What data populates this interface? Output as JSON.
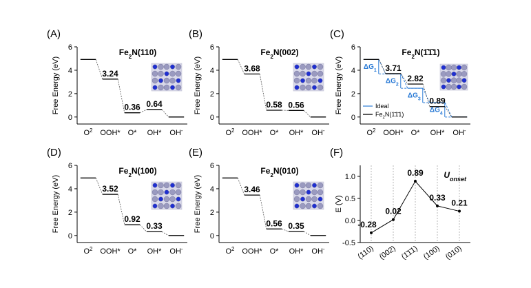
{
  "chart_data": [
    {
      "type": "energy-diagram",
      "panel_label": "(A)",
      "title_main": "Fe",
      "title_sub": "2",
      "title_rest": "N(110)",
      "ylabel": "Free Energy (eV)",
      "ylim": [
        -0.6,
        6
      ],
      "yticks": [
        "0",
        "2",
        "4",
        "6"
      ],
      "categories": [
        "O2",
        "OOH*",
        "O*",
        "OH*",
        "OH-"
      ],
      "values": [
        4.92,
        3.24,
        0.36,
        0.64,
        0
      ],
      "labels": [
        "",
        "3.24",
        "0.36",
        "0.64",
        ""
      ]
    },
    {
      "type": "energy-diagram",
      "panel_label": "(B)",
      "title_main": "Fe",
      "title_sub": "2",
      "title_rest": "N(002)",
      "ylabel": "Free Energy (eV)",
      "ylim": [
        -0.6,
        6
      ],
      "yticks": [
        "0",
        "2",
        "4",
        "6"
      ],
      "categories": [
        "O2",
        "OOH*",
        "O*",
        "OH*",
        "OH-"
      ],
      "values": [
        4.92,
        3.68,
        0.58,
        0.56,
        0
      ],
      "labels": [
        "",
        "3.68",
        "0.58",
        "0.56",
        ""
      ]
    },
    {
      "type": "energy-diagram",
      "panel_label": "(C)",
      "title_main": "Fe",
      "title_sub": "2",
      "title_rest": "N(1̄1̄1)",
      "ylabel": "Free Energy (eV)",
      "ylim": [
        -0.6,
        6
      ],
      "yticks": [
        "0",
        "2",
        "4",
        "6"
      ],
      "categories": [
        "O2",
        "OOH*",
        "O*",
        "OH*",
        "OH-"
      ],
      "values": [
        4.92,
        3.71,
        2.82,
        0.89,
        0
      ],
      "labels": [
        "",
        "3.71",
        "2.82",
        "0.89",
        ""
      ],
      "ideal_values": [
        4.92,
        3.69,
        2.46,
        1.23,
        0
      ],
      "delta_labels": [
        "ΔG1",
        "ΔG2",
        "ΔG3",
        "ΔG4"
      ],
      "legend": [
        "Ideal",
        "Fe2N(1̄1̄1)"
      ]
    },
    {
      "type": "energy-diagram",
      "panel_label": "(D)",
      "title_main": "Fe",
      "title_sub": "2",
      "title_rest": "N(100)",
      "ylabel": "Free Energy (eV)",
      "ylim": [
        -0.6,
        6
      ],
      "yticks": [
        "0",
        "2",
        "4",
        "6"
      ],
      "categories": [
        "O2",
        "OOH*",
        "O*",
        "OH*",
        "OH-"
      ],
      "values": [
        4.92,
        3.52,
        0.92,
        0.33,
        0
      ],
      "labels": [
        "",
        "3.52",
        "0.92",
        "0.33",
        ""
      ]
    },
    {
      "type": "energy-diagram",
      "panel_label": "(E)",
      "title_main": "Fe",
      "title_sub": "2",
      "title_rest": "N(010)",
      "ylabel": "Free Energy (eV)",
      "ylim": [
        -0.6,
        6
      ],
      "yticks": [
        "0",
        "2",
        "4",
        "6"
      ],
      "categories": [
        "O2",
        "OOH*",
        "O*",
        "OH*",
        "OH-"
      ],
      "values": [
        4.92,
        3.46,
        0.56,
        0.35,
        0
      ],
      "labels": [
        "",
        "3.46",
        "0.56",
        "0.35",
        ""
      ]
    },
    {
      "type": "line",
      "panel_label": "(F)",
      "title": "Uonset",
      "ylabel": "E (V)",
      "ylim": [
        -0.5,
        1.25
      ],
      "yticks": [
        "-0.5",
        "0.0",
        "0.5",
        "1.0"
      ],
      "categories": [
        "(110)",
        "(002)",
        "(1̄1̄1)",
        "(100)",
        "(010)"
      ],
      "values": [
        -0.28,
        0.02,
        0.89,
        0.33,
        0.21
      ],
      "labels": [
        "-0.28",
        "0.02",
        "0.89",
        "0.33",
        "0.21"
      ]
    }
  ]
}
